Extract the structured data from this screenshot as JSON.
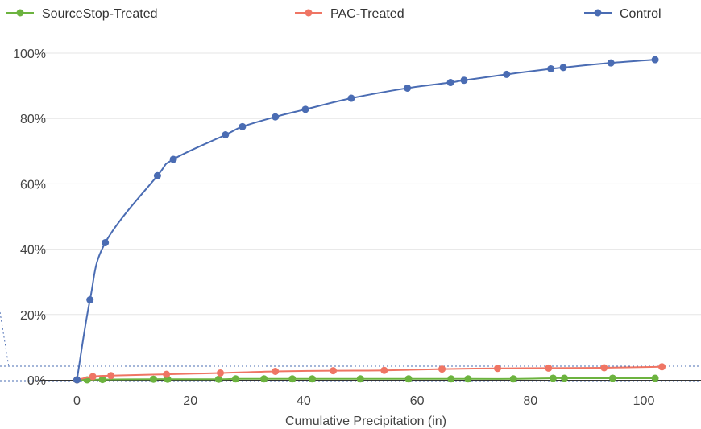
{
  "chart_data": {
    "type": "line",
    "xlabel": "Cumulative Precipitation (in)",
    "ylabel": "",
    "xlim": [
      -12,
      108
    ],
    "ylim": [
      0,
      100
    ],
    "x_ticks": [
      "0",
      "20",
      "40",
      "60",
      "80",
      "100"
    ],
    "y_ticks": [
      "0%",
      "20%",
      "40%",
      "60%",
      "80%",
      "100%"
    ],
    "grid": "horizontal",
    "legend_position": "top",
    "series": [
      {
        "name": "SourceStop-Treated",
        "color": "#6cb33f",
        "x": [
          0,
          1.8,
          4.5,
          13.5,
          16,
          25,
          28,
          33,
          38,
          41.5,
          50,
          58.5,
          66,
          69,
          77,
          84,
          86,
          94.5,
          102
        ],
        "y": [
          0,
          0,
          0.1,
          0.2,
          0.2,
          0.2,
          0.3,
          0.3,
          0.3,
          0.3,
          0.3,
          0.3,
          0.3,
          0.3,
          0.3,
          0.5,
          0.5,
          0.5,
          0.5
        ]
      },
      {
        "name": "PAC-Treated",
        "color": "#ef7564",
        "x": [
          0,
          2.8,
          6,
          15.8,
          25.3,
          35,
          45.2,
          54.2,
          64.4,
          74.2,
          83.2,
          93,
          103.2
        ],
        "y": [
          0,
          1,
          1.3,
          1.7,
          2.1,
          2.6,
          2.8,
          2.9,
          3.3,
          3.5,
          3.6,
          3.7,
          4
        ]
      },
      {
        "name": "Control",
        "color": "#4a6cb3",
        "x": [
          0,
          2.3,
          5,
          14.2,
          17,
          26.2,
          29.2,
          35,
          40.3,
          48.4,
          58.3,
          65.9,
          68.3,
          75.8,
          83.6,
          85.8,
          94.2,
          102
        ],
        "y": [
          0,
          24.5,
          42,
          62.5,
          67.5,
          75,
          77.5,
          80.5,
          82.8,
          86.2,
          89.3,
          91,
          91.7,
          93.5,
          95.2,
          95.6,
          97,
          98
        ]
      }
    ]
  }
}
